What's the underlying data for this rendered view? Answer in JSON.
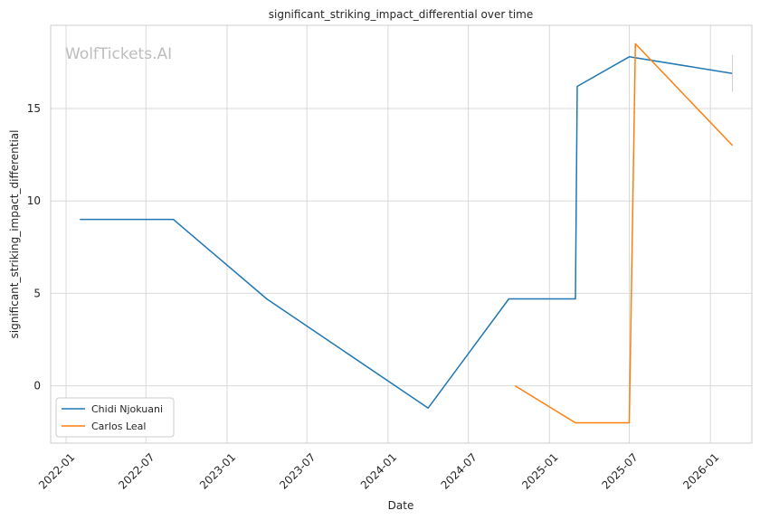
{
  "watermark": "WolfTickets.AI",
  "chart_data": {
    "type": "line",
    "title": "significant_striking_impact_differential over time",
    "xlabel": "Date",
    "ylabel": "significant_striking_impact_differential",
    "x_ticks": [
      "2022-01",
      "2022-07",
      "2023-01",
      "2023-07",
      "2024-01",
      "2024-07",
      "2025-01",
      "2025-07",
      "2026-01"
    ],
    "y_ticks": [
      0,
      5,
      10,
      15
    ],
    "xlim": [
      "2021-11-27",
      "2026-04-05"
    ],
    "ylim": [
      -3.1,
      19.5
    ],
    "grid": true,
    "legend_position": "lower-left",
    "series": [
      {
        "name": "Chidi Njokuani",
        "color": "#1f77b4",
        "points": [
          {
            "x": "2022-02-01",
            "y": 9.0
          },
          {
            "x": "2022-09-01",
            "y": 9.0
          },
          {
            "x": "2023-04-01",
            "y": 4.7
          },
          {
            "x": "2024-04-01",
            "y": -1.2
          },
          {
            "x": "2024-10-01",
            "y": 4.7
          },
          {
            "x": "2025-03-01",
            "y": 4.7
          },
          {
            "x": "2025-03-05",
            "y": 16.2
          },
          {
            "x": "2025-07-01",
            "y": 17.8
          },
          {
            "x": "2026-02-20",
            "y": 16.9
          }
        ]
      },
      {
        "name": "Carlos Leal",
        "color": "#ff7f0e",
        "points": [
          {
            "x": "2024-10-15",
            "y": 0.0
          },
          {
            "x": "2025-03-01",
            "y": -2.0
          },
          {
            "x": "2025-07-01",
            "y": -2.0
          },
          {
            "x": "2025-07-15",
            "y": 18.5
          },
          {
            "x": "2026-02-20",
            "y": 13.0
          }
        ]
      }
    ]
  }
}
